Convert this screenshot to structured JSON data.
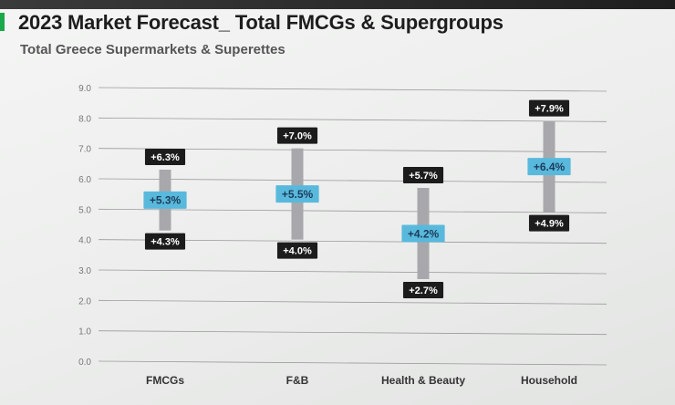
{
  "header": {
    "title": "2023 Market Forecast_ Total FMCGs & Supergroups",
    "subtitle": "Total Greece Supermarkets & Superettes"
  },
  "colors": {
    "range_bar": "#a8a8ac",
    "mid_label_bg": "#58b9dc",
    "mid_label_text": "#1e3c5a",
    "end_label_bg": "#1c1c1c",
    "end_label_text": "#ffffff",
    "grid": "#9a9a9a",
    "accent": "#19a84a"
  },
  "chart_data": {
    "type": "bar",
    "title": "2023 Market Forecast_ Total FMCGs & Supergroups",
    "subtitle": "Total Greece Supermarkets & Superettes",
    "categories": [
      "FMCGs",
      "F&B",
      "Health & Beauty",
      "Household"
    ],
    "yticks": [
      "9.0",
      "8.0",
      "7.0",
      "6.0",
      "5.0",
      "4.0",
      "3.0",
      "2.0",
      "1.0",
      "0.0"
    ],
    "ylim": [
      0,
      9
    ],
    "grid": true,
    "series": [
      {
        "key": "high",
        "values": [
          6.3,
          7.0,
          5.7,
          7.9
        ],
        "labels": [
          "+6.3%",
          "+7.0%",
          "+5.7%",
          "+7.9%"
        ]
      },
      {
        "key": "mid",
        "values": [
          5.3,
          5.5,
          4.2,
          6.4
        ],
        "labels": [
          "+5.3%",
          "+5.5%",
          "+4.2%",
          "+6.4%"
        ]
      },
      {
        "key": "low",
        "values": [
          4.3,
          4.0,
          2.7,
          4.9
        ],
        "labels": [
          "+4.3%",
          "+4.0%",
          "+2.7%",
          "+4.9%"
        ]
      }
    ]
  }
}
